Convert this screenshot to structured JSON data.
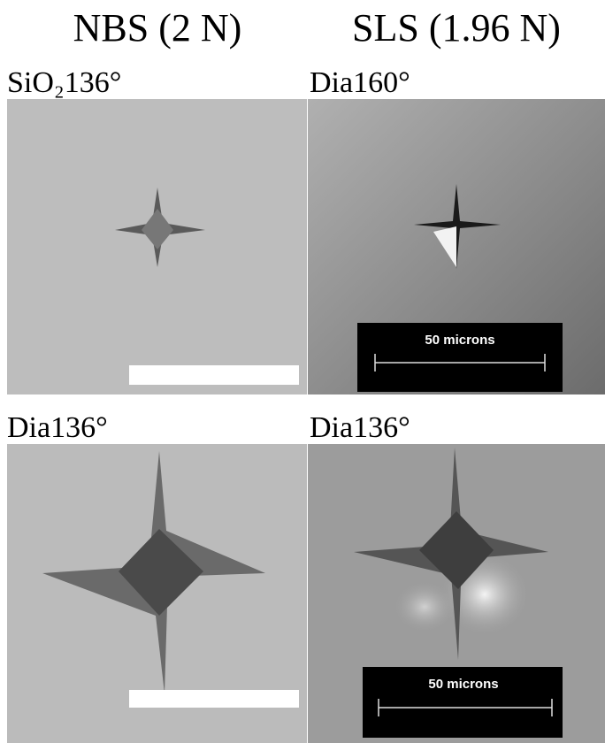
{
  "headers": [
    "NBS (2 N)",
    "SLS (1.96 N)"
  ],
  "panels": [
    {
      "label": "SiO₂136°"
    },
    {
      "label": "Dia160°",
      "scale_label": "50 microns"
    },
    {
      "label": "Dia136°"
    },
    {
      "label": "Dia136°",
      "scale_label": "50 microns"
    }
  ]
}
